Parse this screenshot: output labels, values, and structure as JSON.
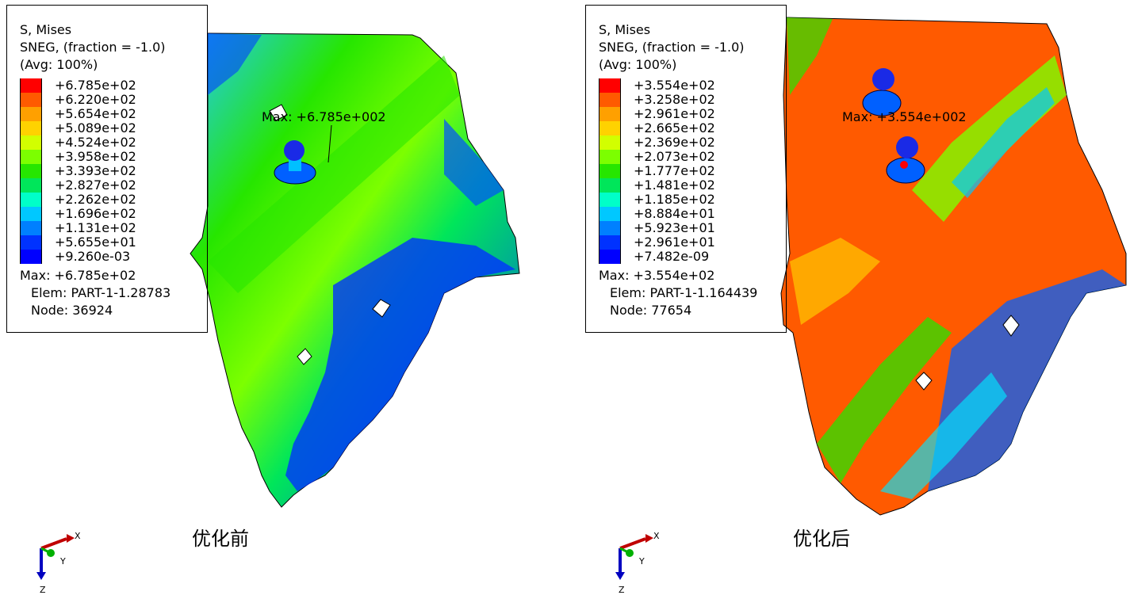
{
  "colors": {
    "legend": [
      "#ff0000",
      "#ff5a00",
      "#ffa000",
      "#ffd200",
      "#d2ff00",
      "#7cff00",
      "#26e600",
      "#00e65a",
      "#00ffc8",
      "#00c8ff",
      "#0080ff",
      "#0032ff",
      "#0000ff"
    ],
    "mesh_edge": "#000000",
    "triad_x": "#c00000",
    "triad_y": "#00b000",
    "triad_z": "#0000c0"
  },
  "panels": [
    {
      "caption": "优化前",
      "legend": {
        "title1": "S, Mises",
        "title2": "SNEG, (fraction = -1.0)",
        "title3": "(Avg: 100%)",
        "ticks": [
          "+6.785e+02",
          "+6.220e+02",
          "+5.654e+02",
          "+5.089e+02",
          "+4.524e+02",
          "+3.958e+02",
          "+3.393e+02",
          "+2.827e+02",
          "+2.262e+02",
          "+1.696e+02",
          "+1.131e+02",
          "+5.655e+01",
          "+9.260e-03"
        ],
        "max": "Max: +6.785e+02",
        "elem": "Elem: PART-1-1.28783",
        "node": "Node: 36924"
      },
      "max_label": "Max: +6.785e+002"
    },
    {
      "caption": "优化后",
      "legend": {
        "title1": "S, Mises",
        "title2": "SNEG, (fraction = -1.0)",
        "title3": "(Avg: 100%)",
        "ticks": [
          "+3.554e+02",
          "+3.258e+02",
          "+2.961e+02",
          "+2.665e+02",
          "+2.369e+02",
          "+2.073e+02",
          "+1.777e+02",
          "+1.481e+02",
          "+1.185e+02",
          "+8.884e+01",
          "+5.923e+01",
          "+2.961e+01",
          "+7.482e-09"
        ],
        "max": "Max: +3.554e+02",
        "elem": "Elem: PART-1-1.164439",
        "node": "Node: 77654"
      },
      "max_label": "Max: +3.554e+002"
    }
  ],
  "triad": {
    "x": "X",
    "y": "Y",
    "z": "Z"
  }
}
